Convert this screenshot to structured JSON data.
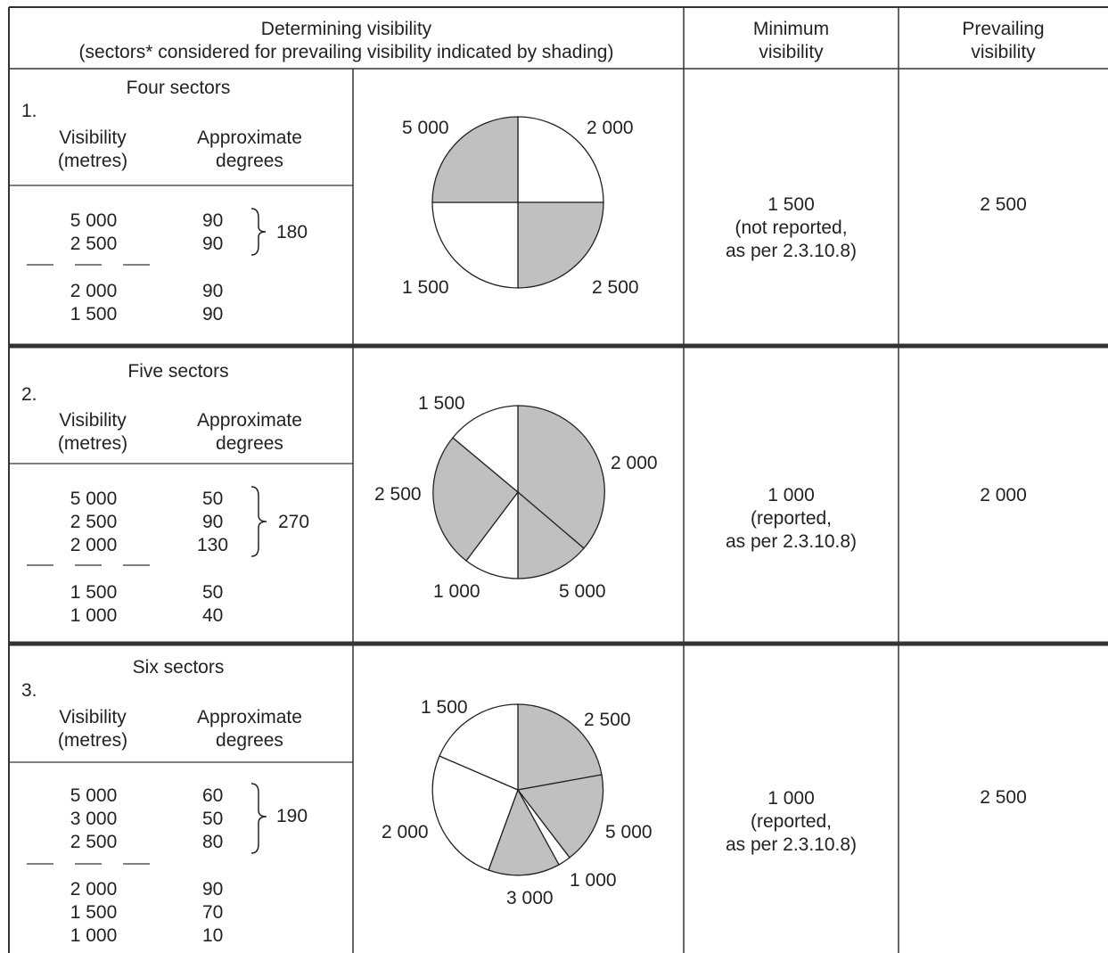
{
  "header": {
    "determining_line1": "Determining visibility",
    "determining_line2": "(sectors* considered for prevailing visibility indicated by shading)",
    "minimum_line1": "Minimum",
    "minimum_line2": "visibility",
    "prevailing_line1": "Prevailing",
    "prevailing_line2": "visibility"
  },
  "columns": {
    "visibility_line1": "Visibility",
    "visibility_line2": "(metres)",
    "degrees_line1": "Approximate",
    "degrees_line2": "degrees"
  },
  "examples": [
    {
      "title": "Four sectors",
      "number": "1.",
      "shaded_rows": [
        {
          "visibility": "5 000",
          "degrees": "90"
        },
        {
          "visibility": "2 500",
          "degrees": "90"
        }
      ],
      "shaded_total": "180",
      "other_rows": [
        {
          "visibility": "2 000",
          "degrees": "90"
        },
        {
          "visibility": "1 500",
          "degrees": "90"
        }
      ],
      "minimum_value": "1 500",
      "minimum_note1": "(not reported,",
      "minimum_note2": "as per 2.3.10.8)",
      "prevailing": "2 500",
      "pie_labels": [
        "5 000",
        "2 000",
        "1 500",
        "2 500"
      ]
    },
    {
      "title": "Five sectors",
      "number": "2.",
      "shaded_rows": [
        {
          "visibility": "5 000",
          "degrees": "50"
        },
        {
          "visibility": "2 500",
          "degrees": "90"
        },
        {
          "visibility": "2 000",
          "degrees": "130"
        }
      ],
      "shaded_total": "270",
      "other_rows": [
        {
          "visibility": "1 500",
          "degrees": "50"
        },
        {
          "visibility": "1 000",
          "degrees": "40"
        }
      ],
      "minimum_value": "1 000",
      "minimum_note1": "(reported,",
      "minimum_note2": "as per 2.3.10.8)",
      "prevailing": "2 000",
      "pie_labels": [
        "1 500",
        "2 000",
        "2 500",
        "1 000",
        "5 000"
      ]
    },
    {
      "title": "Six sectors",
      "number": "3.",
      "shaded_rows": [
        {
          "visibility": "5 000",
          "degrees": "60"
        },
        {
          "visibility": "3 000",
          "degrees": "50"
        },
        {
          "visibility": "2 500",
          "degrees": "80"
        }
      ],
      "shaded_total": "190",
      "other_rows": [
        {
          "visibility": "2 000",
          "degrees": "90"
        },
        {
          "visibility": "1 500",
          "degrees": "70"
        },
        {
          "visibility": "1 000",
          "degrees": "10"
        }
      ],
      "minimum_value": "1 000",
      "minimum_note1": "(reported,",
      "minimum_note2": "as per 2.3.10.8)",
      "prevailing": "2 500",
      "pie_labels": [
        "1 500",
        "2 500",
        "2 000",
        "5 000",
        "1 000",
        "3 000"
      ]
    }
  ],
  "colors": {
    "shaded": "#c0c0c0",
    "lines": "#333333"
  }
}
